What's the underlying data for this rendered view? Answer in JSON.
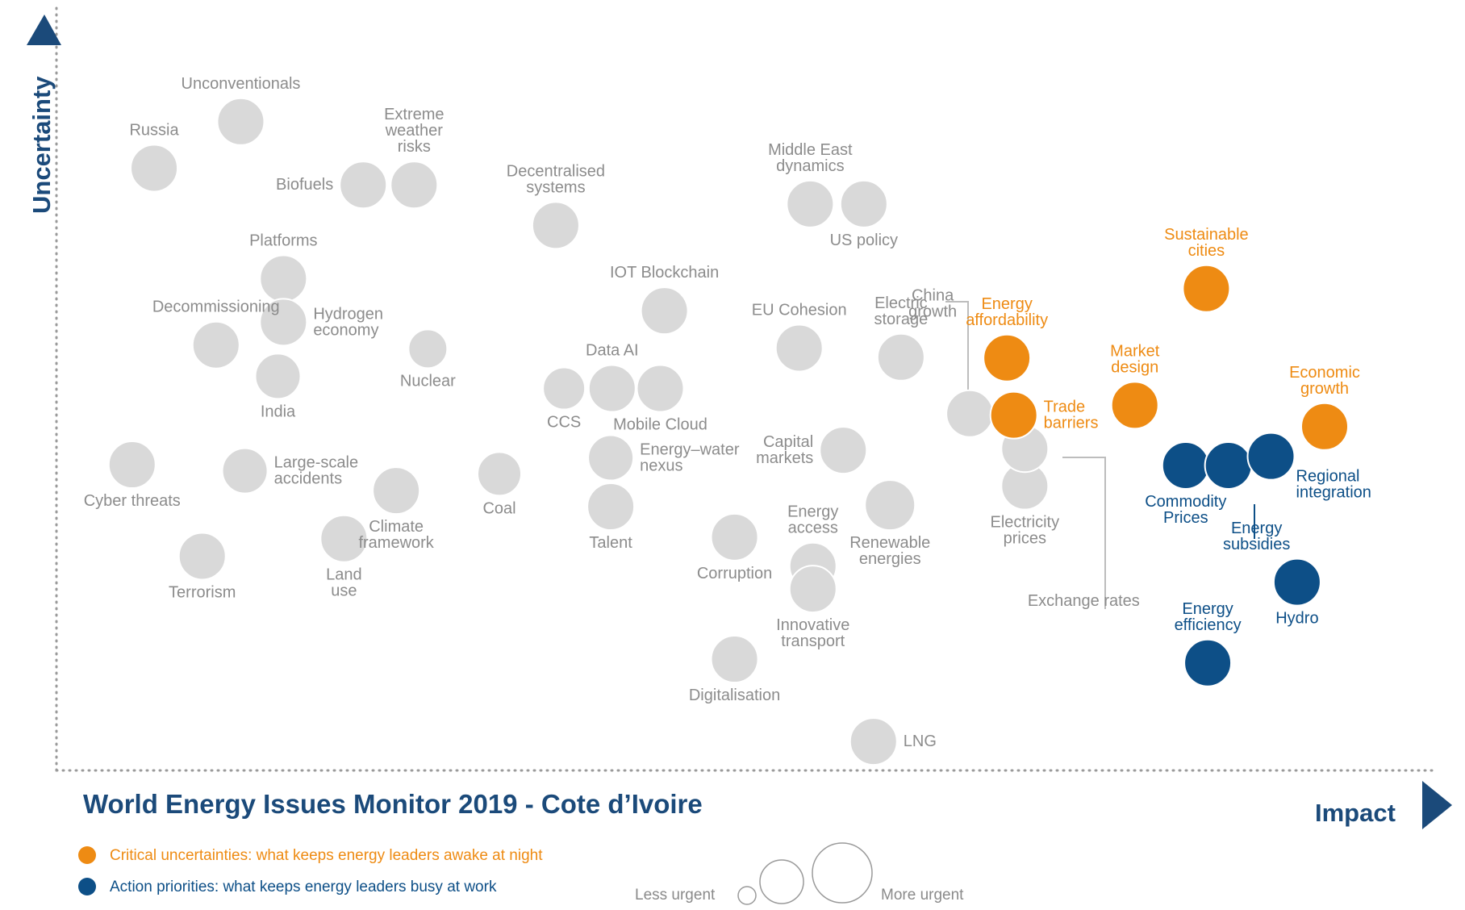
{
  "chart_data": {
    "type": "scatter",
    "title": "World Energy Issues Monitor 2019 - Cote d’Ivoire",
    "xlabel": "Impact",
    "ylabel": "Uncertainty",
    "xlim": [
      0,
      100
    ],
    "ylim": [
      0,
      100
    ],
    "grid": false,
    "legend": [
      {
        "name": "Critical uncertainties: what keeps energy leaders awake at night",
        "color": "#ee8b13",
        "category": "uncertainty"
      },
      {
        "name": "Action priorities: what keeps energy leaders busy at work",
        "color": "#0d4f87",
        "category": "priority"
      }
    ],
    "size_legend": {
      "less": "Less urgent",
      "more": "More urgent"
    },
    "colors": {
      "neutral": "#d9d9d9",
      "uncertainty": "#ee8b13",
      "priority": "#0d4f87",
      "label_neutral": "#8c8c8c",
      "axis": "#1b4a7a"
    },
    "points": [
      {
        "label": [
          "Russia"
        ],
        "x": 7.1,
        "y": 79.0,
        "r": 29,
        "category": "neutral",
        "label_pos": "above"
      },
      {
        "label": [
          "Unconventionals"
        ],
        "x": 13.4,
        "y": 85.1,
        "r": 29,
        "category": "neutral",
        "label_pos": "above"
      },
      {
        "label": [
          "Biofuels"
        ],
        "x": 22.3,
        "y": 76.8,
        "r": 29,
        "category": "neutral",
        "label_pos": "left"
      },
      {
        "label": [
          "Extreme",
          "weather",
          "risks"
        ],
        "x": 26.0,
        "y": 76.8,
        "r": 29,
        "category": "neutral",
        "label_pos": "above"
      },
      {
        "label": [
          "Decentralised",
          "systems"
        ],
        "x": 36.3,
        "y": 71.5,
        "r": 29,
        "category": "neutral",
        "label_pos": "above"
      },
      {
        "label": [
          "Middle East",
          "dynamics"
        ],
        "x": 54.8,
        "y": 74.3,
        "r": 29,
        "category": "neutral",
        "label_pos": "above"
      },
      {
        "label": [
          "US policy"
        ],
        "x": 58.7,
        "y": 74.3,
        "r": 29,
        "category": "neutral",
        "label_pos": "below"
      },
      {
        "label": [
          "Platforms"
        ],
        "x": 16.5,
        "y": 64.5,
        "r": 29,
        "category": "neutral",
        "label_pos": "above"
      },
      {
        "label": [
          "Hydrogen",
          "economy"
        ],
        "x": 16.5,
        "y": 58.8,
        "r": 29,
        "category": "neutral",
        "label_pos": "right"
      },
      {
        "label": [
          "Decommissioning"
        ],
        "x": 11.6,
        "y": 55.8,
        "r": 29,
        "category": "neutral",
        "label_pos": "above"
      },
      {
        "label": [
          "India"
        ],
        "x": 16.1,
        "y": 51.7,
        "r": 28,
        "category": "neutral",
        "label_pos": "below"
      },
      {
        "label": [
          "Nuclear"
        ],
        "x": 27.0,
        "y": 55.3,
        "r": 24,
        "category": "neutral",
        "label_pos": "below"
      },
      {
        "label": [
          "IOT Blockchain"
        ],
        "x": 44.2,
        "y": 60.3,
        "r": 29,
        "category": "neutral",
        "label_pos": "above"
      },
      {
        "label": [
          "Data AI"
        ],
        "x": 40.4,
        "y": 50.1,
        "r": 29,
        "category": "neutral",
        "label_pos": "above"
      },
      {
        "label": [
          "CCS"
        ],
        "x": 36.9,
        "y": 50.1,
        "r": 26,
        "category": "neutral",
        "label_pos": "below"
      },
      {
        "label": [
          "Mobile Cloud"
        ],
        "x": 43.9,
        "y": 50.1,
        "r": 29,
        "category": "neutral",
        "label_pos": "below"
      },
      {
        "label": [
          "EU Cohesion"
        ],
        "x": 54.0,
        "y": 55.4,
        "r": 29,
        "category": "neutral",
        "label_pos": "above"
      },
      {
        "label": [
          "Electric",
          "storage"
        ],
        "x": 61.4,
        "y": 54.2,
        "r": 29,
        "category": "neutral",
        "label_pos": "above"
      },
      {
        "label": [
          "China",
          "growth"
        ],
        "x": 66.4,
        "y": 46.8,
        "r": 29,
        "category": "neutral",
        "label_pos": "leader-above"
      },
      {
        "label": [
          "Large-scale",
          "accidents"
        ],
        "x": 13.7,
        "y": 39.3,
        "r": 28,
        "category": "neutral",
        "label_pos": "right"
      },
      {
        "label": [
          "Cyber threats"
        ],
        "x": 5.5,
        "y": 40.1,
        "r": 29,
        "category": "neutral",
        "label_pos": "below"
      },
      {
        "label": [
          "Terrorism"
        ],
        "x": 10.6,
        "y": 28.1,
        "r": 29,
        "category": "neutral",
        "label_pos": "below"
      },
      {
        "label": [
          "Land",
          "use"
        ],
        "x": 20.9,
        "y": 30.4,
        "r": 29,
        "category": "neutral",
        "label_pos": "below"
      },
      {
        "label": [
          "Climate",
          "framework"
        ],
        "x": 24.7,
        "y": 36.7,
        "r": 29,
        "category": "neutral",
        "label_pos": "below"
      },
      {
        "label": [
          "Coal"
        ],
        "x": 32.2,
        "y": 38.9,
        "r": 27,
        "category": "neutral",
        "label_pos": "below"
      },
      {
        "label": [
          "Energy–water",
          "nexus"
        ],
        "x": 40.3,
        "y": 41.0,
        "r": 28,
        "category": "neutral",
        "label_pos": "right"
      },
      {
        "label": [
          "Talent"
        ],
        "x": 40.3,
        "y": 34.6,
        "r": 29,
        "category": "neutral",
        "label_pos": "below"
      },
      {
        "label": [
          "Capital",
          "markets"
        ],
        "x": 57.2,
        "y": 42.0,
        "r": 29,
        "category": "neutral",
        "label_pos": "left"
      },
      {
        "label": [
          "Renewable",
          "energies"
        ],
        "x": 60.6,
        "y": 34.8,
        "r": 31,
        "category": "neutral",
        "label_pos": "below"
      },
      {
        "label": [
          "Corruption"
        ],
        "x": 49.3,
        "y": 30.6,
        "r": 29,
        "category": "neutral",
        "label_pos": "below"
      },
      {
        "label": [
          "Energy",
          "access"
        ],
        "x": 55.0,
        "y": 26.8,
        "r": 29,
        "category": "neutral",
        "label_pos": "above"
      },
      {
        "label": [
          "Innovative",
          "transport"
        ],
        "x": 55.0,
        "y": 23.8,
        "r": 29,
        "category": "neutral",
        "label_pos": "below"
      },
      {
        "label": [
          "Digitalisation"
        ],
        "x": 49.3,
        "y": 14.6,
        "r": 29,
        "category": "neutral",
        "label_pos": "below"
      },
      {
        "label": [
          "LNG"
        ],
        "x": 59.4,
        "y": 3.8,
        "r": 29,
        "category": "neutral",
        "label_pos": "right"
      },
      {
        "label": [
          "Electricity",
          "prices"
        ],
        "x": 70.4,
        "y": 37.3,
        "r": 29,
        "category": "neutral",
        "label_pos": "below"
      },
      {
        "label": [
          "Exchange rates"
        ],
        "x": 70.4,
        "y": 42.2,
        "r": 29,
        "category": "neutral",
        "label_pos": "leader-below"
      },
      {
        "label": [
          "Energy",
          "affordability"
        ],
        "x": 69.1,
        "y": 54.1,
        "r": 29,
        "category": "uncertainty",
        "label_pos": "above"
      },
      {
        "label": [
          "Trade",
          "barriers"
        ],
        "x": 69.6,
        "y": 46.6,
        "r": 29,
        "category": "uncertainty",
        "label_pos": "right"
      },
      {
        "label": [
          "Sustainable",
          "cities"
        ],
        "x": 83.6,
        "y": 63.2,
        "r": 29,
        "category": "uncertainty",
        "label_pos": "above"
      },
      {
        "label": [
          "Market",
          "design"
        ],
        "x": 78.4,
        "y": 47.9,
        "r": 29,
        "category": "uncertainty",
        "label_pos": "above"
      },
      {
        "label": [
          "Economic",
          "growth"
        ],
        "x": 92.2,
        "y": 45.1,
        "r": 29,
        "category": "uncertainty",
        "label_pos": "above"
      },
      {
        "label": [
          "Commodity",
          "Prices"
        ],
        "x": 82.1,
        "y": 40.0,
        "r": 29,
        "category": "priority",
        "label_pos": "below"
      },
      {
        "label": [
          "Energy",
          "subsidies"
        ],
        "x": 85.2,
        "y": 40.0,
        "r": 29,
        "category": "priority",
        "label_pos": "leader-below"
      },
      {
        "label": [
          "Regional",
          "integration"
        ],
        "x": 88.3,
        "y": 41.2,
        "r": 29,
        "category": "priority",
        "label_pos": "below-right"
      },
      {
        "label": [
          "Hydro"
        ],
        "x": 90.2,
        "y": 24.7,
        "r": 29,
        "category": "priority",
        "label_pos": "below"
      },
      {
        "label": [
          "Energy",
          "efficiency"
        ],
        "x": 83.7,
        "y": 14.1,
        "r": 29,
        "category": "priority",
        "label_pos": "above"
      }
    ]
  }
}
